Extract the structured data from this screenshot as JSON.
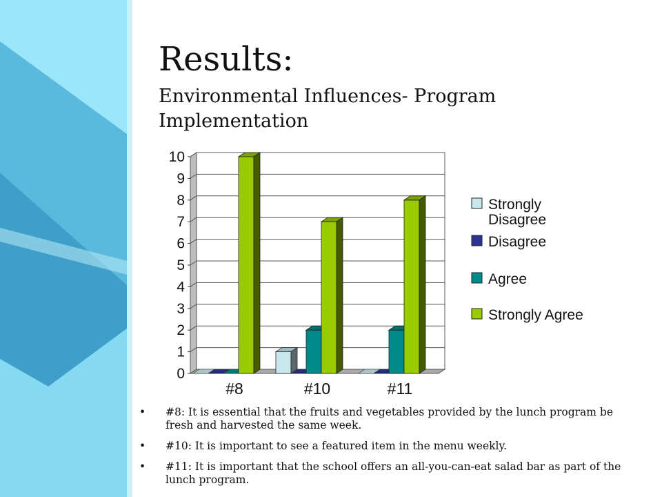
{
  "slide": {
    "title": "Results:",
    "subtitle": "Environmental Influences- Program Implementation",
    "colors": {
      "panel_light": "#8ae0f7",
      "panel_mid": "#5bbfe0",
      "panel_dark": "#3a9cc4"
    }
  },
  "chart_data": {
    "type": "bar",
    "style": "3d-clustered-column",
    "categories": [
      "#8",
      "#10",
      "#11"
    ],
    "series": [
      {
        "name": "Strongly Disagree",
        "values": [
          0,
          1,
          0
        ],
        "color": "#c8e8ee"
      },
      {
        "name": "Disagree",
        "values": [
          0,
          0,
          0
        ],
        "color": "#2e3192"
      },
      {
        "name": "Agree",
        "values": [
          0,
          2,
          2
        ],
        "color": "#008b8b"
      },
      {
        "name": "Strongly Agree",
        "values": [
          10,
          7,
          8
        ],
        "color": "#99cc00"
      }
    ],
    "yticks": [
      "0",
      "1",
      "2",
      "3",
      "4",
      "5",
      "6",
      "7",
      "8",
      "9",
      "10"
    ],
    "ylim": [
      0,
      10
    ],
    "grid": true,
    "legend_position": "right",
    "xlabel": "",
    "ylabel": ""
  },
  "legend": {
    "items": [
      {
        "line1": "Strongly",
        "line2": "Disagree"
      },
      {
        "line1": "Disagree",
        "line2": ""
      },
      {
        "line1": "Agree",
        "line2": ""
      },
      {
        "line1": "Strongly Agree",
        "line2": ""
      }
    ]
  },
  "notes": [
    {
      "bullet": "•",
      "text": "#8: It is essential that the fruits and vegetables provided by the lunch program be fresh and harvested the same week."
    },
    {
      "bullet": "•",
      "text": "#10: It is important to see a featured item in the menu weekly."
    },
    {
      "bullet": "•",
      "text": "#11: It is important that the school offers an all-you-can-eat salad bar as part of the lunch program."
    }
  ]
}
